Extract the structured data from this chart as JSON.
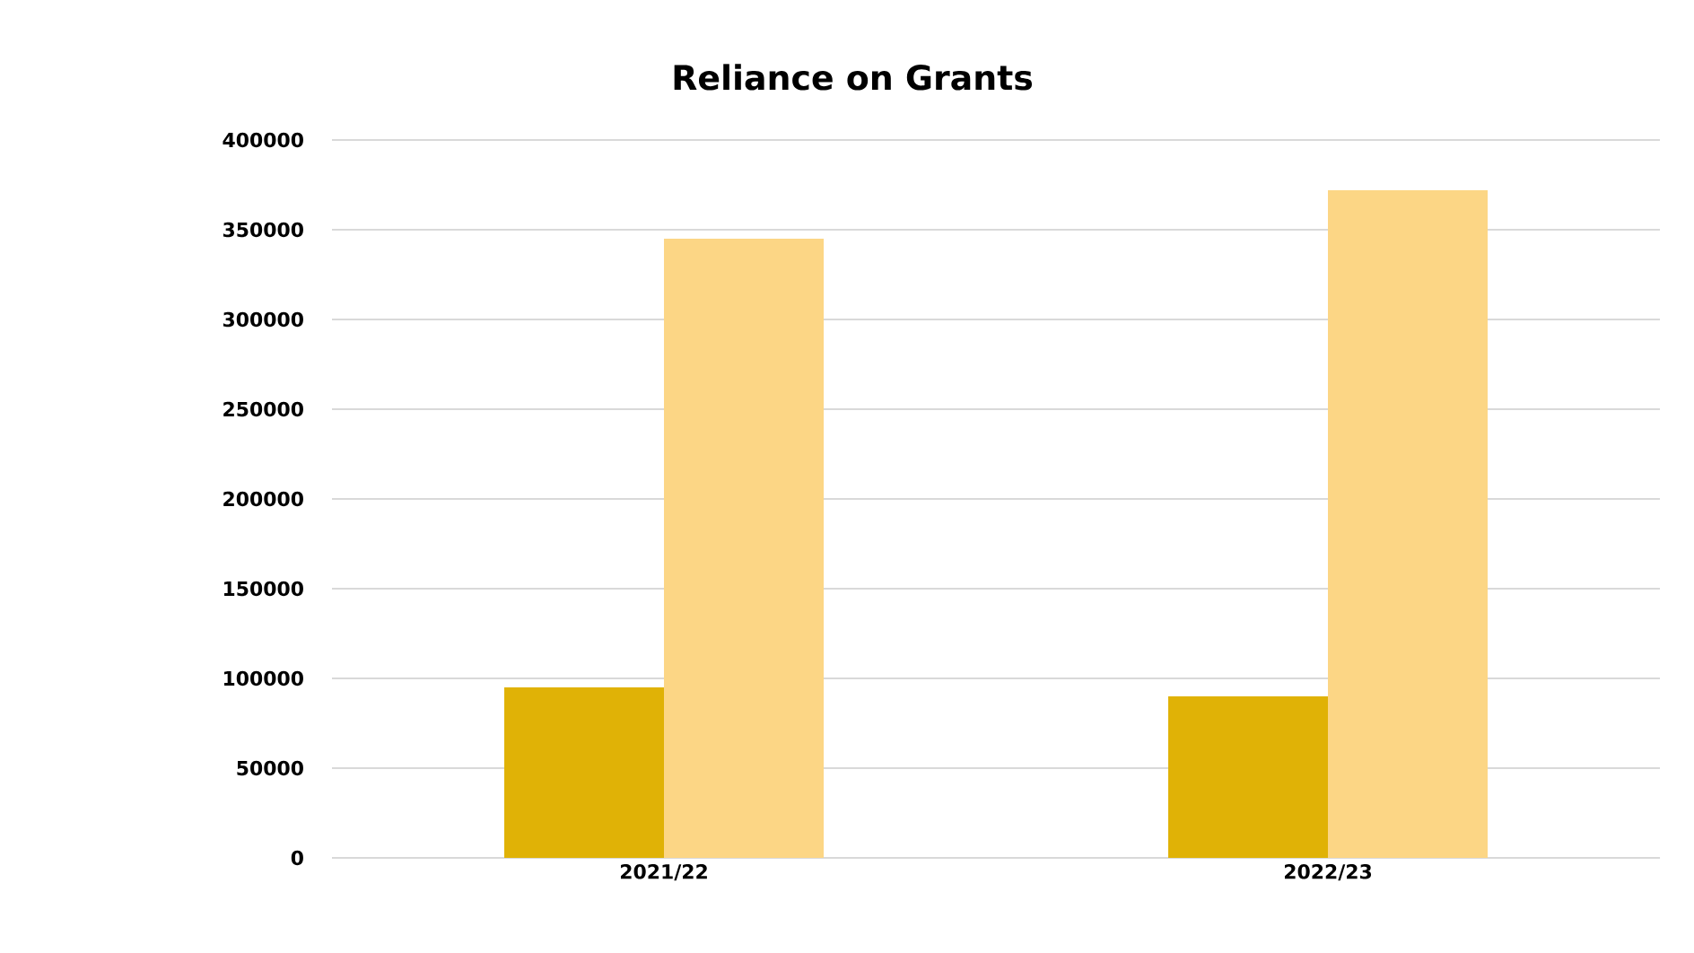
{
  "chart_data": {
    "type": "bar",
    "title": "Reliance on Grants",
    "categories": [
      "2021/22",
      "2022/23"
    ],
    "series": [
      {
        "color": "#e0b206",
        "values": [
          95000,
          90000
        ]
      },
      {
        "color": "#fcd685",
        "values": [
          345000,
          372000
        ]
      }
    ],
    "ylim": [
      0,
      400000
    ],
    "yticks": [
      0,
      50000,
      100000,
      150000,
      200000,
      250000,
      300000,
      350000,
      400000
    ],
    "grid": "y"
  }
}
